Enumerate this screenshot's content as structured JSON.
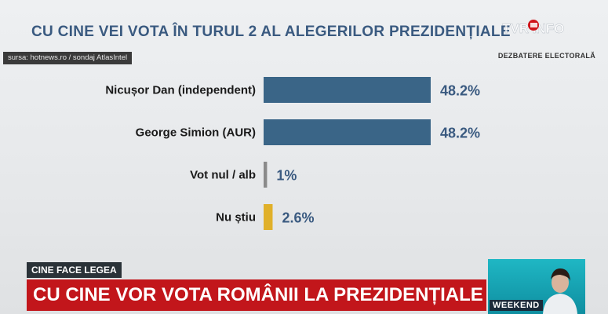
{
  "header": {
    "title": "CU CINE VEI VOTA ÎN TURUL 2 AL ALEGERILOR PREZIDENȚIALE",
    "source": "sursa: hotnews.ro / sondaj AtlasIntel",
    "show_tag": "DEZBATERE ELECTORALĂ",
    "logo_text": "TVR INFO"
  },
  "chart_data": {
    "type": "bar",
    "orientation": "horizontal",
    "title": "CU CINE VEI VOTA ÎN TURUL 2 AL ALEGERILOR PREZIDENȚIALE",
    "categories": [
      "Nicușor Dan (independent)",
      "George Simion (AUR)",
      "Vot nul / alb",
      "Nu știu"
    ],
    "values": [
      48.2,
      48.2,
      1,
      2.6
    ],
    "value_labels": [
      "48.2%",
      "48.2%",
      "1%",
      "2.6%"
    ],
    "colors": [
      "#3a6587",
      "#3a6587",
      "#8a8a8a",
      "#e0b02a"
    ],
    "xlim": [
      0,
      48.2
    ],
    "unit": "%",
    "grid": false,
    "legend": false
  },
  "lower_third": {
    "topic": "CINE FACE LEGEA",
    "headline": "CU CINE VOR VOTA ROMÂNII LA PREZIDENȚIALE",
    "show_name": "WEEKEND"
  }
}
